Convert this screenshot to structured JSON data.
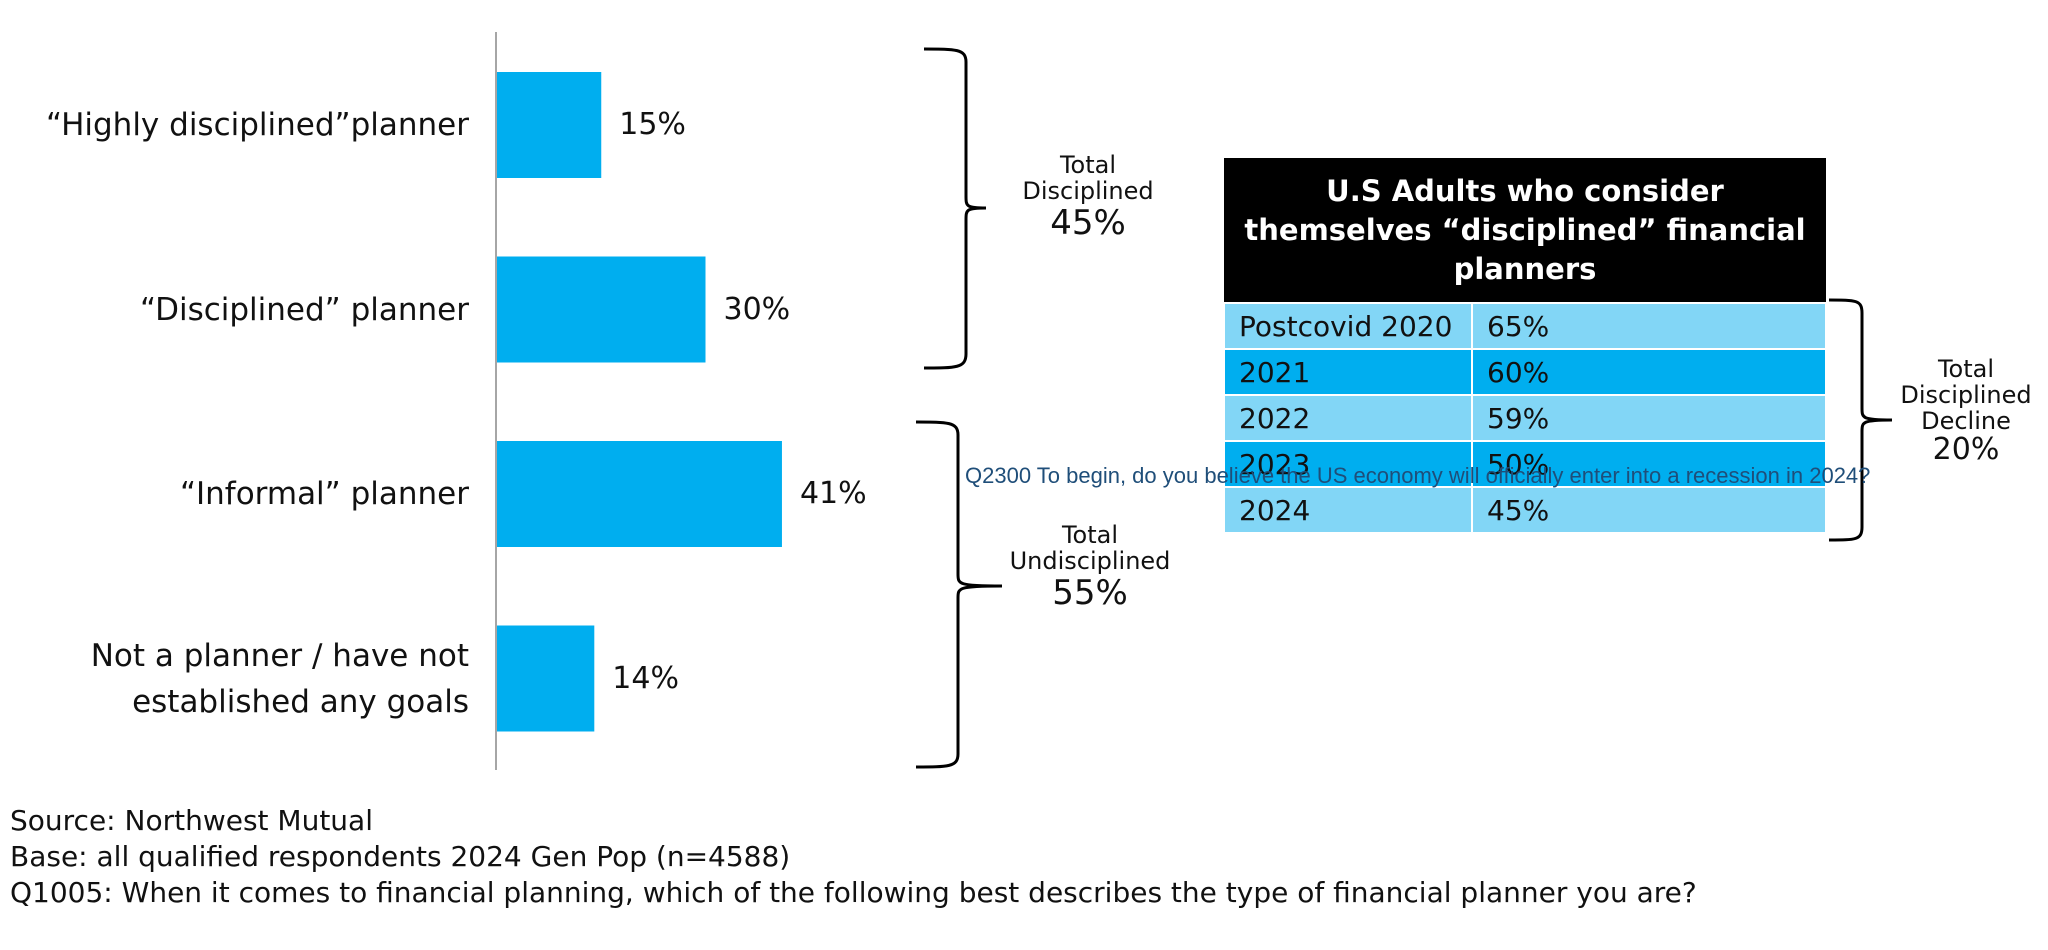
{
  "chart_data": {
    "type": "bar",
    "orientation": "horizontal",
    "categories": [
      [
        "“Highly disciplined”planner"
      ],
      [
        "“Disciplined” planner"
      ],
      [
        "“Informal” planner"
      ],
      [
        "Not a planner / have not",
        "established any goals"
      ]
    ],
    "values": [
      15,
      30,
      41,
      14
    ],
    "value_labels": [
      "15%",
      "30%",
      "41%",
      "14%"
    ],
    "bar_color": "#00aeef",
    "xlim": [
      0,
      100
    ],
    "groups": [
      {
        "lines": [
          "Total",
          "Disciplined"
        ],
        "value": "45%",
        "spans": [
          0,
          1
        ]
      },
      {
        "lines": [
          "Total",
          "Undisciplined"
        ],
        "value": "55%",
        "spans": [
          2,
          3
        ]
      }
    ]
  },
  "table": {
    "header": "U.S Adults who consider themselves “disciplined” financial planners",
    "rows": [
      {
        "year": "Postcovid 2020",
        "value": "65%"
      },
      {
        "year": "2021",
        "value": "60%"
      },
      {
        "year": "2022",
        "value": "59%"
      },
      {
        "year": "2023",
        "value": "50%"
      },
      {
        "year": "2024",
        "value": "45%"
      }
    ],
    "side_label": {
      "lines": [
        "Total",
        "Disciplined",
        "Decline"
      ],
      "value": "20%"
    }
  },
  "overlay_note": "Q2300  To begin, do you believe the US economy will officially enter into a recession in 2024?",
  "footnotes": [
    "Source: Northwest Mutual",
    "Base: all qualified respondents 2024 Gen Pop (n=4588)",
    "Q1005: When it comes to financial planning, which of the following best describes the type of financial planner you are?"
  ]
}
